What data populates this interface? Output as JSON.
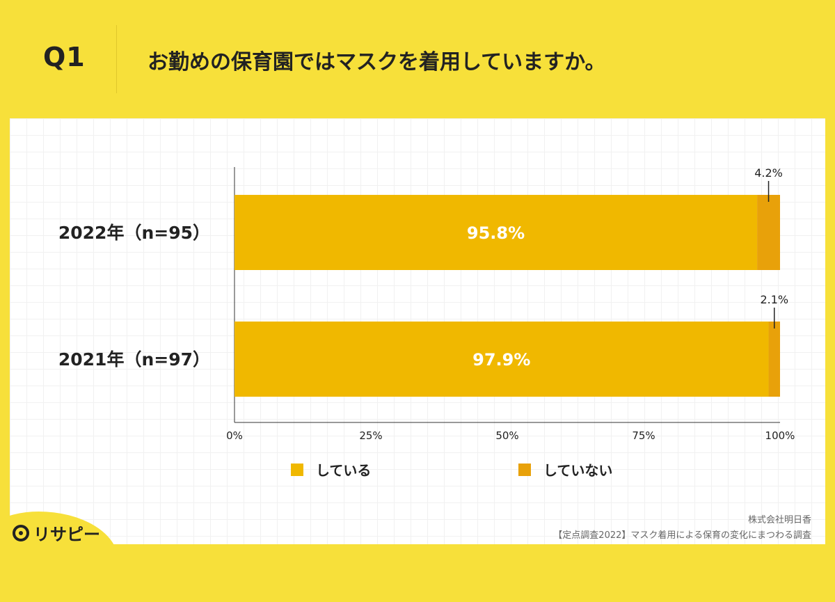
{
  "header": {
    "q_label": "Q1",
    "question": "お勤めの保育園ではマスクを着用していますか。"
  },
  "chart_data": {
    "type": "bar",
    "orientation": "horizontal",
    "stacked": true,
    "categories": [
      "2022年（n=95）",
      "2021年（n=97）"
    ],
    "series": [
      {
        "name": "している",
        "values": [
          95.8,
          97.9
        ],
        "color": "#f0b800"
      },
      {
        "name": "していない",
        "values": [
          4.2,
          2.1
        ],
        "color": "#e8a10a"
      }
    ],
    "data_labels": [
      [
        "95.8%",
        "4.2%"
      ],
      [
        "97.9%",
        "2.1%"
      ]
    ],
    "x_ticks": [
      "0%",
      "25%",
      "50%",
      "75%",
      "100%"
    ],
    "xlim": [
      0,
      100
    ],
    "grid": false,
    "legend_position": "bottom"
  },
  "legend": {
    "items": [
      {
        "label": "している",
        "color": "#f0b800"
      },
      {
        "label": "していない",
        "color": "#e8a10a"
      }
    ]
  },
  "footer": {
    "company": "株式会社明日香",
    "survey": "【定点調査2022】マスク着用による保育の変化にまつわる調査",
    "logo_text": "リサピー"
  }
}
